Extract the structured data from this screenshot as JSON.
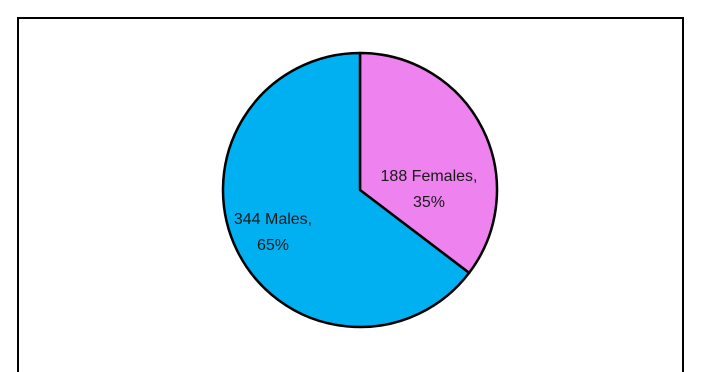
{
  "chart_data": {
    "type": "pie",
    "start_angle_deg": 0,
    "direction": "clockwise",
    "grid": false,
    "legend": "none",
    "slices": [
      {
        "label": "Females",
        "value": 188,
        "percent": 35,
        "color": "#ee82ee",
        "label_line1": "188 Females,",
        "label_line2": "35%"
      },
      {
        "label": "Males",
        "value": 344,
        "percent": 65,
        "color": "#00b0f0",
        "label_line1": "344 Males,",
        "label_line2": "65%"
      }
    ],
    "border_color": "#000000"
  }
}
